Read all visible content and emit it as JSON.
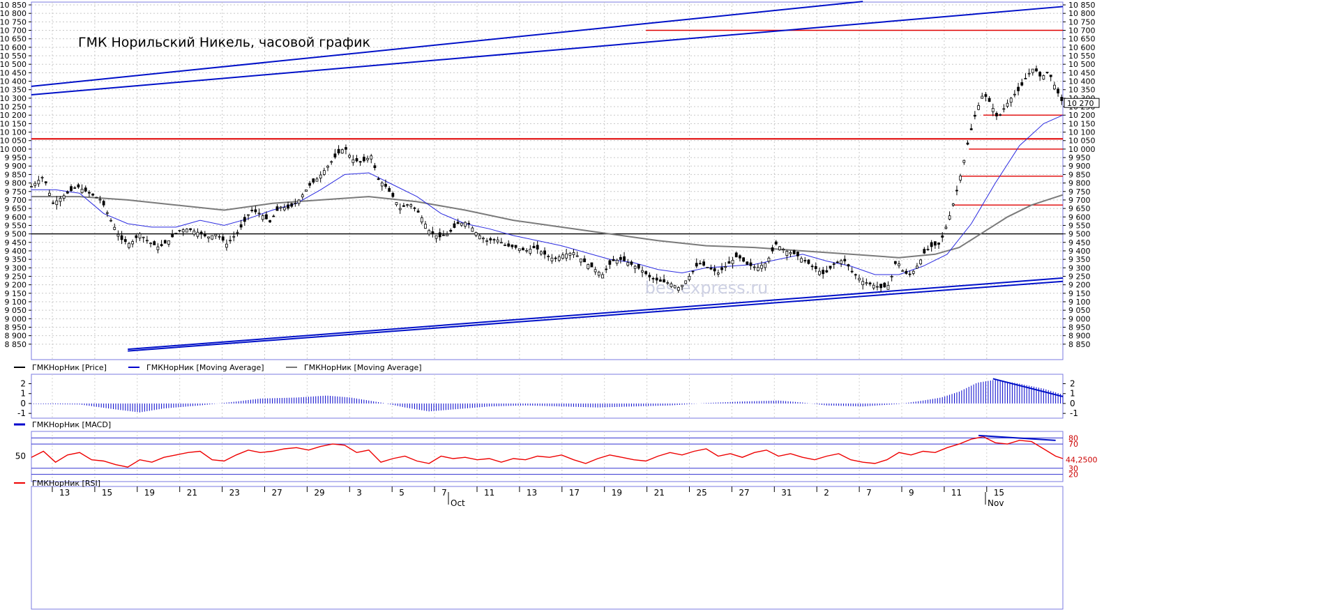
{
  "chart_data": [
    {
      "type": "candlestick",
      "panel": "price",
      "title": "ГМК Норильский Никель, часовой график",
      "watermark": "bes-express.ru",
      "ylim": [
        8800,
        10850
      ],
      "y_tick_labels": [
        "10 850",
        "10 800",
        "10 750",
        "10 700",
        "10 650",
        "10 600",
        "10 550",
        "10 500",
        "10 450",
        "10 400",
        "10 350",
        "10 300",
        "10 250",
        "10 200",
        "10 150",
        "10 100",
        "10 050",
        "10 000",
        "9 950",
        "9 900",
        "9 850",
        "9 800",
        "9 750",
        "9 700",
        "9 650",
        "9 600",
        "9 550",
        "9 500",
        "9 450",
        "9 400",
        "9 350",
        "9 300",
        "9 250",
        "9 200",
        "9 150",
        "9 100",
        "9 050",
        "9 000",
        "8 950",
        "8 900",
        "8 850"
      ],
      "current_price_label": "10 270",
      "price_path": [
        [
          0,
          9780
        ],
        [
          10,
          9840
        ],
        [
          18,
          9680
        ],
        [
          28,
          9730
        ],
        [
          38,
          9780
        ],
        [
          48,
          9740
        ],
        [
          58,
          9700
        ],
        [
          66,
          9580
        ],
        [
          74,
          9470
        ],
        [
          82,
          9440
        ],
        [
          90,
          9500
        ],
        [
          98,
          9450
        ],
        [
          106,
          9420
        ],
        [
          114,
          9460
        ],
        [
          122,
          9520
        ],
        [
          130,
          9530
        ],
        [
          138,
          9510
        ],
        [
          146,
          9480
        ],
        [
          154,
          9500
        ],
        [
          162,
          9440
        ],
        [
          170,
          9500
        ],
        [
          176,
          9560
        ],
        [
          182,
          9640
        ],
        [
          190,
          9620
        ],
        [
          198,
          9570
        ],
        [
          206,
          9660
        ],
        [
          214,
          9650
        ],
        [
          222,
          9700
        ],
        [
          230,
          9780
        ],
        [
          238,
          9830
        ],
        [
          246,
          9900
        ],
        [
          254,
          9970
        ],
        [
          260,
          10010
        ],
        [
          266,
          9940
        ],
        [
          274,
          9920
        ],
        [
          282,
          9960
        ],
        [
          288,
          9820
        ],
        [
          294,
          9780
        ],
        [
          300,
          9720
        ],
        [
          306,
          9650
        ],
        [
          314,
          9680
        ],
        [
          322,
          9620
        ],
        [
          330,
          9520
        ],
        [
          338,
          9480
        ],
        [
          346,
          9500
        ],
        [
          354,
          9560
        ],
        [
          362,
          9570
        ],
        [
          370,
          9500
        ],
        [
          378,
          9460
        ],
        [
          386,
          9470
        ],
        [
          394,
          9430
        ],
        [
          402,
          9420
        ],
        [
          410,
          9400
        ],
        [
          418,
          9420
        ],
        [
          426,
          9380
        ],
        [
          434,
          9350
        ],
        [
          442,
          9380
        ],
        [
          450,
          9390
        ],
        [
          458,
          9340
        ],
        [
          466,
          9300
        ],
        [
          474,
          9260
        ],
        [
          482,
          9340
        ],
        [
          490,
          9350
        ],
        [
          498,
          9320
        ],
        [
          506,
          9290
        ],
        [
          514,
          9240
        ],
        [
          522,
          9220
        ],
        [
          530,
          9210
        ],
        [
          538,
          9180
        ],
        [
          546,
          9250
        ],
        [
          554,
          9330
        ],
        [
          562,
          9300
        ],
        [
          570,
          9270
        ],
        [
          578,
          9320
        ],
        [
          586,
          9370
        ],
        [
          594,
          9320
        ],
        [
          602,
          9300
        ],
        [
          610,
          9330
        ],
        [
          618,
          9440
        ],
        [
          626,
          9400
        ],
        [
          634,
          9380
        ],
        [
          642,
          9340
        ],
        [
          650,
          9300
        ],
        [
          658,
          9260
        ],
        [
          666,
          9320
        ],
        [
          674,
          9350
        ],
        [
          682,
          9270
        ],
        [
          690,
          9220
        ],
        [
          698,
          9200
        ],
        [
          706,
          9180
        ],
        [
          712,
          9200
        ],
        [
          718,
          9350
        ],
        [
          724,
          9270
        ],
        [
          730,
          9260
        ],
        [
          736,
          9320
        ],
        [
          742,
          9400
        ],
        [
          748,
          9430
        ],
        [
          754,
          9440
        ],
        [
          760,
          9560
        ],
        [
          766,
          9700
        ],
        [
          772,
          9870
        ],
        [
          778,
          10060
        ],
        [
          784,
          10220
        ],
        [
          790,
          10330
        ],
        [
          796,
          10270
        ],
        [
          802,
          10180
        ],
        [
          808,
          10250
        ],
        [
          814,
          10310
        ],
        [
          820,
          10350
        ],
        [
          826,
          10430
        ],
        [
          832,
          10480
        ],
        [
          838,
          10420
        ],
        [
          844,
          10460
        ],
        [
          850,
          10360
        ],
        [
          856,
          10270
        ]
      ],
      "ma_fast_path": [
        [
          0,
          9760
        ],
        [
          20,
          9760
        ],
        [
          40,
          9740
        ],
        [
          60,
          9620
        ],
        [
          80,
          9560
        ],
        [
          100,
          9540
        ],
        [
          120,
          9540
        ],
        [
          140,
          9580
        ],
        [
          160,
          9550
        ],
        [
          180,
          9590
        ],
        [
          200,
          9640
        ],
        [
          220,
          9680
        ],
        [
          240,
          9760
        ],
        [
          260,
          9850
        ],
        [
          280,
          9860
        ],
        [
          300,
          9790
        ],
        [
          320,
          9720
        ],
        [
          340,
          9620
        ],
        [
          360,
          9560
        ],
        [
          380,
          9530
        ],
        [
          400,
          9490
        ],
        [
          420,
          9460
        ],
        [
          440,
          9430
        ],
        [
          460,
          9390
        ],
        [
          480,
          9350
        ],
        [
          500,
          9330
        ],
        [
          520,
          9290
        ],
        [
          540,
          9270
        ],
        [
          560,
          9300
        ],
        [
          580,
          9310
        ],
        [
          600,
          9320
        ],
        [
          620,
          9350
        ],
        [
          640,
          9380
        ],
        [
          660,
          9340
        ],
        [
          680,
          9310
        ],
        [
          700,
          9260
        ],
        [
          720,
          9260
        ],
        [
          740,
          9310
        ],
        [
          760,
          9380
        ],
        [
          780,
          9560
        ],
        [
          800,
          9800
        ],
        [
          820,
          10020
        ],
        [
          840,
          10150
        ],
        [
          856,
          10200
        ]
      ],
      "ma_slow_path": [
        [
          0,
          9720
        ],
        [
          40,
          9720
        ],
        [
          80,
          9700
        ],
        [
          120,
          9670
        ],
        [
          160,
          9640
        ],
        [
          200,
          9680
        ],
        [
          240,
          9700
        ],
        [
          280,
          9720
        ],
        [
          320,
          9690
        ],
        [
          360,
          9640
        ],
        [
          400,
          9580
        ],
        [
          440,
          9540
        ],
        [
          480,
          9500
        ],
        [
          520,
          9460
        ],
        [
          560,
          9430
        ],
        [
          600,
          9420
        ],
        [
          640,
          9400
        ],
        [
          680,
          9380
        ],
        [
          720,
          9360
        ],
        [
          750,
          9380
        ],
        [
          770,
          9420
        ],
        [
          790,
          9510
        ],
        [
          810,
          9600
        ],
        [
          830,
          9670
        ],
        [
          856,
          9730
        ]
      ],
      "horizontal_levels": [
        {
          "value": 10700,
          "color": "#e00000",
          "from": 510
        },
        {
          "value": 10060,
          "color": "#e00000",
          "from": 0
        },
        {
          "value": 10200,
          "color": "#e00000",
          "from": 790
        },
        {
          "value": 10000,
          "color": "#e00000",
          "from": 778
        },
        {
          "value": 9840,
          "color": "#e00000",
          "from": 772
        },
        {
          "value": 9670,
          "color": "#e00000",
          "from": 766
        },
        {
          "value": 9500,
          "color": "#000000",
          "from": 0
        }
      ],
      "trend_channel_upper": [
        {
          "from": [
            0,
            10370
          ],
          "to": [
            690,
            10870
          ]
        },
        {
          "from": [
            0,
            10320
          ],
          "to": [
            856,
            10840
          ]
        }
      ],
      "trend_channel_lower": [
        {
          "from": [
            80,
            8820
          ],
          "to": [
            856,
            9240
          ]
        },
        {
          "from": [
            80,
            8810
          ],
          "to": [
            856,
            9220
          ]
        }
      ],
      "legend": [
        "ГМКНорНик [Price]",
        "ГМКНорНик [Moving Average]",
        "ГМКНорНик [Moving Average]"
      ],
      "series_colors": [
        "#000000",
        "#0000cc",
        "#777777"
      ]
    },
    {
      "type": "bar",
      "panel": "macd",
      "ylim": [
        -1.2,
        2.6
      ],
      "y_tick_labels": [
        "2",
        "1",
        "0",
        "-1"
      ],
      "macd_path": [
        [
          0,
          -0.05
        ],
        [
          40,
          -0.1
        ],
        [
          70,
          -0.6
        ],
        [
          90,
          -0.9
        ],
        [
          110,
          -0.5
        ],
        [
          140,
          -0.2
        ],
        [
          170,
          0.2
        ],
        [
          190,
          0.5
        ],
        [
          220,
          0.6
        ],
        [
          245,
          0.8
        ],
        [
          265,
          0.6
        ],
        [
          290,
          0.1
        ],
        [
          310,
          -0.4
        ],
        [
          330,
          -0.8
        ],
        [
          350,
          -0.6
        ],
        [
          380,
          -0.3
        ],
        [
          410,
          -0.2
        ],
        [
          440,
          -0.3
        ],
        [
          470,
          -0.4
        ],
        [
          500,
          -0.3
        ],
        [
          530,
          -0.2
        ],
        [
          560,
          0.05
        ],
        [
          590,
          0.2
        ],
        [
          620,
          0.3
        ],
        [
          640,
          0.1
        ],
        [
          660,
          -0.2
        ],
        [
          690,
          -0.3
        ],
        [
          720,
          -0.05
        ],
        [
          740,
          0.3
        ],
        [
          755,
          0.6
        ],
        [
          770,
          1.2
        ],
        [
          785,
          2.1
        ],
        [
          800,
          2.4
        ],
        [
          820,
          2.0
        ],
        [
          840,
          1.5
        ],
        [
          856,
          0.9
        ]
      ],
      "divergence_line": {
        "from": [
          798,
          2.5
        ],
        "to": [
          856,
          0.7
        ]
      },
      "legend": [
        "ГМКНорНик [MACD]"
      ],
      "series_colors": [
        "#0000cc"
      ]
    },
    {
      "type": "line",
      "panel": "rsi",
      "ylim": [
        15,
        85
      ],
      "y_tick_labels": [
        "50"
      ],
      "right_labels": [
        "80",
        "70",
        "30",
        "20"
      ],
      "current_value_label": "44,2500",
      "levels": [
        80,
        70,
        30,
        20
      ],
      "rsi_path": [
        [
          0,
          48
        ],
        [
          10,
          58
        ],
        [
          20,
          40
        ],
        [
          30,
          52
        ],
        [
          40,
          56
        ],
        [
          50,
          44
        ],
        [
          60,
          42
        ],
        [
          70,
          36
        ],
        [
          80,
          32
        ],
        [
          90,
          44
        ],
        [
          100,
          40
        ],
        [
          110,
          48
        ],
        [
          120,
          52
        ],
        [
          130,
          56
        ],
        [
          140,
          58
        ],
        [
          150,
          44
        ],
        [
          160,
          42
        ],
        [
          170,
          52
        ],
        [
          180,
          60
        ],
        [
          190,
          56
        ],
        [
          200,
          58
        ],
        [
          210,
          62
        ],
        [
          220,
          64
        ],
        [
          230,
          60
        ],
        [
          240,
          66
        ],
        [
          250,
          70
        ],
        [
          260,
          68
        ],
        [
          270,
          56
        ],
        [
          280,
          60
        ],
        [
          290,
          40
        ],
        [
          300,
          46
        ],
        [
          310,
          50
        ],
        [
          320,
          42
        ],
        [
          330,
          38
        ],
        [
          340,
          50
        ],
        [
          350,
          46
        ],
        [
          360,
          48
        ],
        [
          370,
          44
        ],
        [
          380,
          46
        ],
        [
          390,
          40
        ],
        [
          400,
          46
        ],
        [
          410,
          44
        ],
        [
          420,
          50
        ],
        [
          430,
          48
        ],
        [
          440,
          52
        ],
        [
          450,
          44
        ],
        [
          460,
          38
        ],
        [
          470,
          46
        ],
        [
          480,
          52
        ],
        [
          490,
          48
        ],
        [
          500,
          44
        ],
        [
          510,
          42
        ],
        [
          520,
          50
        ],
        [
          530,
          56
        ],
        [
          540,
          52
        ],
        [
          550,
          58
        ],
        [
          560,
          62
        ],
        [
          570,
          50
        ],
        [
          580,
          54
        ],
        [
          590,
          48
        ],
        [
          600,
          56
        ],
        [
          610,
          60
        ],
        [
          620,
          50
        ],
        [
          630,
          54
        ],
        [
          640,
          48
        ],
        [
          650,
          44
        ],
        [
          660,
          50
        ],
        [
          670,
          54
        ],
        [
          680,
          44
        ],
        [
          690,
          40
        ],
        [
          700,
          38
        ],
        [
          710,
          44
        ],
        [
          720,
          56
        ],
        [
          730,
          52
        ],
        [
          740,
          58
        ],
        [
          750,
          56
        ],
        [
          760,
          64
        ],
        [
          770,
          70
        ],
        [
          780,
          78
        ],
        [
          790,
          82
        ],
        [
          800,
          72
        ],
        [
          810,
          70
        ],
        [
          820,
          76
        ],
        [
          830,
          74
        ],
        [
          840,
          62
        ],
        [
          850,
          50
        ],
        [
          856,
          46
        ]
      ],
      "divergence_line": {
        "from": [
          786,
          84
        ],
        "to": [
          850,
          76
        ]
      },
      "legend": [
        "ГМКНорНик [RSI]"
      ],
      "series_colors": [
        "#ee0000"
      ]
    }
  ],
  "x_axis": {
    "day_labels": [
      "13",
      "15",
      "19",
      "21",
      "23",
      "27",
      "29",
      "3",
      "5",
      "7",
      "11",
      "13",
      "17",
      "19",
      "21",
      "25",
      "27",
      "31",
      "2",
      "7",
      "9",
      "11",
      "15"
    ],
    "month_labels": [
      "Oct",
      "Nov"
    ]
  }
}
